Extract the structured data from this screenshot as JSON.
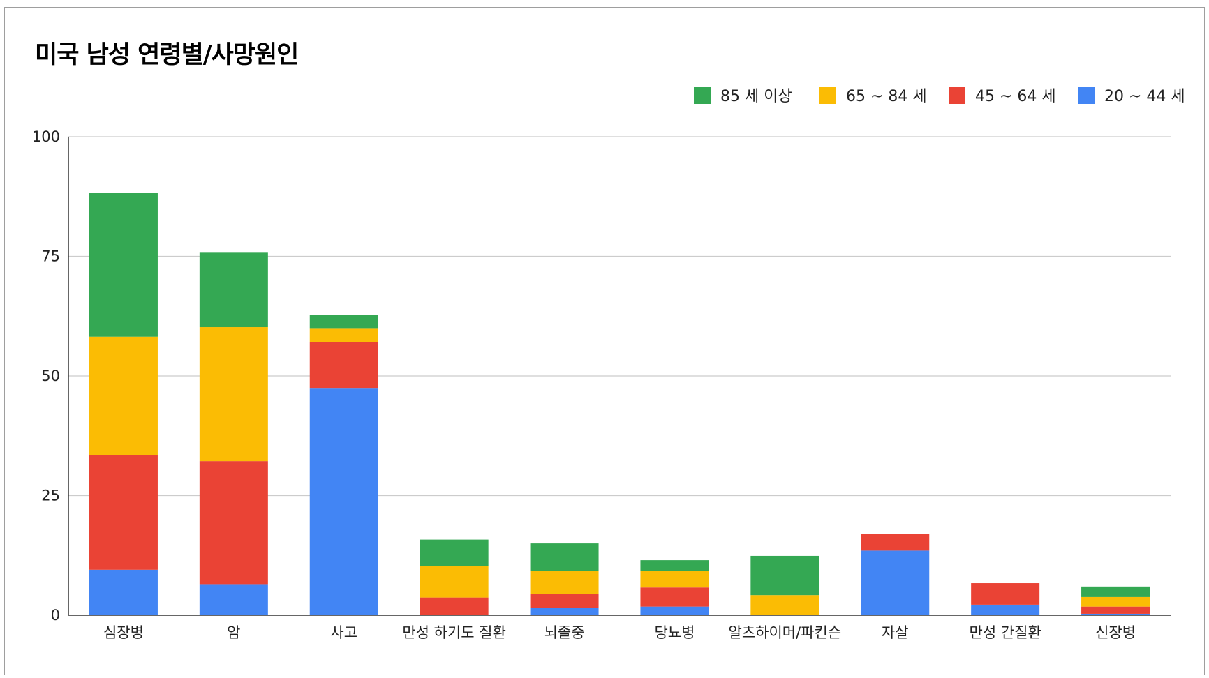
{
  "chart_data": {
    "type": "bar",
    "stacked": true,
    "title": "미국 남성 연령별/사망원인",
    "xlabel": "",
    "ylabel": "",
    "ylim": [
      0,
      100
    ],
    "yticks": [
      "0",
      "25",
      "50",
      "75",
      "100"
    ],
    "categories": [
      "심장병",
      "암",
      "사고",
      "만성 하기도 질환",
      "뇌졸중",
      "당뇨병",
      "알츠하이머/파킨슨",
      "자살",
      "만성 간질환",
      "신장병"
    ],
    "series": [
      {
        "name": "20 ~ 44 세",
        "color": "#4285F4",
        "values": [
          9.5,
          6.5,
          47.5,
          0,
          1.5,
          1.8,
          0,
          13.5,
          2.2,
          0.3
        ]
      },
      {
        "name": "45 ~ 64 세",
        "color": "#EA4335",
        "values": [
          24,
          25.7,
          9.5,
          3.7,
          3,
          4,
          0,
          3.5,
          4.5,
          1.5
        ]
      },
      {
        "name": "65 ~ 84 세",
        "color": "#FBBC04",
        "values": [
          24.7,
          28,
          3,
          6.6,
          4.7,
          3.4,
          4.2,
          0,
          0,
          2
        ]
      },
      {
        "name": "85 세 이상",
        "color": "#34A853",
        "values": [
          30,
          15.7,
          2.8,
          5.5,
          5.8,
          2.3,
          8.2,
          0,
          0,
          2.2
        ]
      }
    ],
    "legend": {
      "placement": "top-right",
      "order": [
        "85 세 이상",
        "65 ~ 84 세",
        "45 ~ 64 세",
        "20 ~ 44 세"
      ]
    },
    "grid": true
  }
}
